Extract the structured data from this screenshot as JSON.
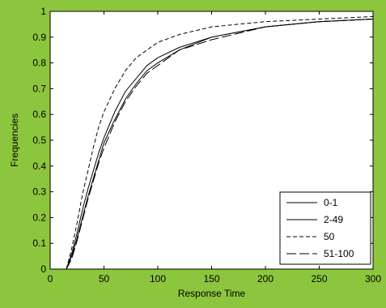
{
  "figure_background": "#8cc63e",
  "chart_data": {
    "type": "line",
    "title": "",
    "xlabel": "Response Time",
    "ylabel": "Frequencies",
    "xlim": [
      0,
      300
    ],
    "ylim": [
      0,
      1
    ],
    "grid": false,
    "legend_position": "bottom-right",
    "x_ticks": [
      "0",
      "50",
      "100",
      "150",
      "200",
      "250",
      "300"
    ],
    "y_ticks": [
      "0",
      "0.1",
      "0.2",
      "0.3",
      "0.4",
      "0.5",
      "0.6",
      "0.7",
      "0.8",
      "0.9",
      "1"
    ],
    "series": [
      {
        "name": "0-1",
        "style": "solid",
        "color": "#000000",
        "x": [
          15,
          20,
          25,
          30,
          35,
          40,
          45,
          50,
          60,
          70,
          80,
          90,
          100,
          120,
          150,
          200,
          250,
          300
        ],
        "y": [
          0,
          0.06,
          0.14,
          0.23,
          0.31,
          0.38,
          0.45,
          0.51,
          0.61,
          0.69,
          0.74,
          0.79,
          0.82,
          0.86,
          0.9,
          0.94,
          0.96,
          0.97
        ]
      },
      {
        "name": "2-49",
        "style": "solid",
        "color": "#000000",
        "x": [
          15,
          20,
          25,
          30,
          35,
          40,
          45,
          50,
          60,
          70,
          80,
          90,
          100,
          120,
          150,
          200,
          250,
          300
        ],
        "y": [
          0,
          0.05,
          0.12,
          0.2,
          0.28,
          0.35,
          0.42,
          0.49,
          0.58,
          0.66,
          0.72,
          0.77,
          0.8,
          0.85,
          0.9,
          0.94,
          0.96,
          0.97
        ]
      },
      {
        "name": "50",
        "style": "dashed",
        "color": "#000000",
        "x": [
          15,
          20,
          25,
          30,
          35,
          40,
          45,
          50,
          60,
          70,
          80,
          90,
          100,
          120,
          150,
          200,
          250,
          300
        ],
        "y": [
          0,
          0.08,
          0.18,
          0.29,
          0.38,
          0.47,
          0.55,
          0.61,
          0.7,
          0.77,
          0.82,
          0.85,
          0.88,
          0.91,
          0.94,
          0.96,
          0.97,
          0.98
        ]
      },
      {
        "name": "51-100",
        "style": "longdash",
        "color": "#000000",
        "x": [
          15,
          20,
          25,
          30,
          35,
          40,
          45,
          50,
          60,
          70,
          80,
          90,
          100,
          120,
          150,
          200,
          250,
          300
        ],
        "y": [
          0,
          0.04,
          0.11,
          0.19,
          0.27,
          0.34,
          0.41,
          0.47,
          0.57,
          0.65,
          0.71,
          0.76,
          0.79,
          0.85,
          0.89,
          0.94,
          0.96,
          0.97
        ]
      }
    ]
  }
}
